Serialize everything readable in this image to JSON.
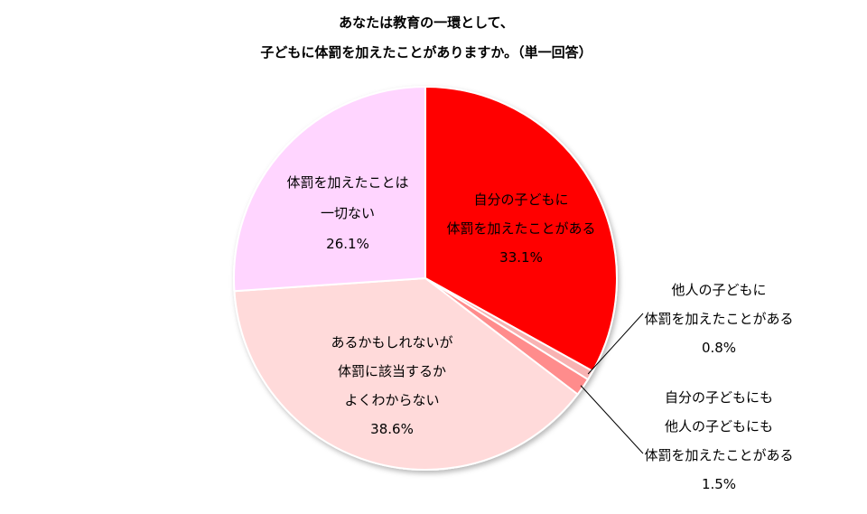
{
  "chart_data": {
    "type": "pie",
    "title_lines": [
      "あなたは教育の一環として、",
      "子どもに体罰を加えたことがありますか。（単一回答）"
    ],
    "start": "12 o'clock",
    "direction": "clockwise",
    "slices": [
      {
        "label_lines": [
          "自分の子どもに",
          "体罰を加えたことがある"
        ],
        "value": 33.1,
        "value_label": "33.1%",
        "color": "#FF0000"
      },
      {
        "label_lines": [
          "他人の子どもに",
          "体罰を加えたことがある"
        ],
        "value": 0.8,
        "value_label": "0.8%",
        "color": "#F8B2B2"
      },
      {
        "label_lines": [
          "自分の子どもにも",
          "他人の子どもにも",
          "体罰を加えたことがある"
        ],
        "value": 1.5,
        "value_label": "1.5%",
        "color": "#FF8C8C"
      },
      {
        "label_lines": [
          "あるかもしれないが",
          "体罰に該当するか",
          "よくわからない"
        ],
        "value": 38.6,
        "value_label": "38.6%",
        "color": "#FFDADA"
      },
      {
        "label_lines": [
          "体罰を加えたことは",
          "一切ない"
        ],
        "value": 26.1,
        "value_label": "26.1%",
        "color": "#FFD5FF"
      }
    ]
  }
}
